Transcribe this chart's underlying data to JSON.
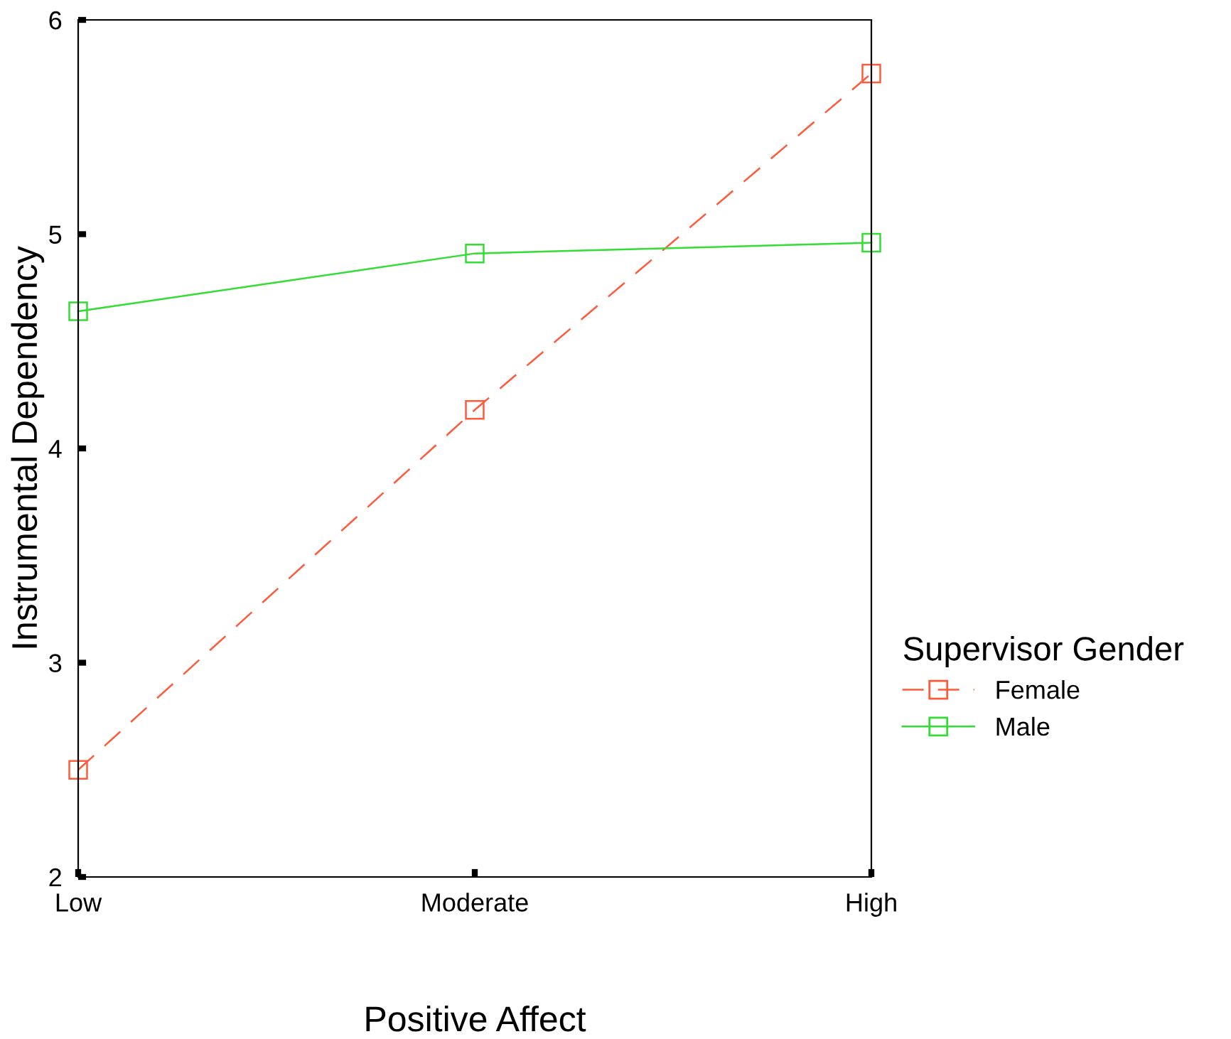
{
  "chart_data": {
    "type": "line",
    "xlabel": "Positive Affect",
    "ylabel": "Instrumental Dependency",
    "legend_title": "Supervisor Gender",
    "categories": [
      "Low",
      "Moderate",
      "High"
    ],
    "series": [
      {
        "name": "Female",
        "color": "#ff5a3c",
        "line_style": "dashed",
        "values": [
          2.5,
          4.18,
          5.75
        ]
      },
      {
        "name": "Male",
        "color": "#33dd33",
        "line_style": "solid",
        "values": [
          4.64,
          4.91,
          4.96
        ]
      }
    ],
    "ylim": [
      2,
      6
    ],
    "yticks": [
      2,
      3,
      4,
      5,
      6
    ],
    "marker": "square",
    "legend": "right",
    "grid": false
  }
}
